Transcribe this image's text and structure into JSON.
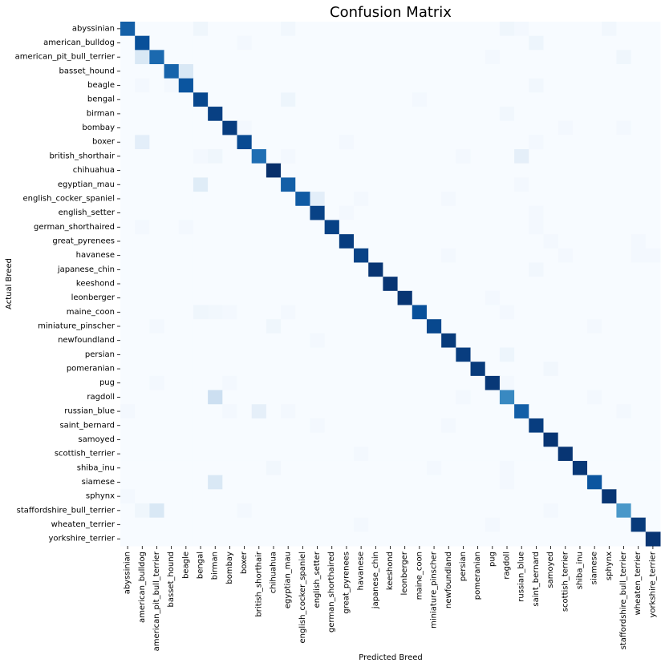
{
  "chart_data": {
    "type": "heatmap",
    "title": "Confusion Matrix",
    "xlabel": "Predicted Breed",
    "ylabel": "Actual Breed",
    "colormap": "Blues",
    "colorbar": false,
    "value_scale": "relative intensity 0-1",
    "categories": [
      "abyssinian",
      "american_bulldog",
      "american_pit_bull_terrier",
      "basset_hound",
      "beagle",
      "bengal",
      "birman",
      "bombay",
      "boxer",
      "british_shorthair",
      "chihuahua",
      "egyptian_mau",
      "english_cocker_spaniel",
      "english_setter",
      "german_shorthaired",
      "great_pyrenees",
      "havanese",
      "japanese_chin",
      "keeshond",
      "leonberger",
      "maine_coon",
      "miniature_pinscher",
      "newfoundland",
      "persian",
      "pomeranian",
      "pug",
      "ragdoll",
      "russian_blue",
      "saint_bernard",
      "samoyed",
      "scottish_terrier",
      "shiba_inu",
      "siamese",
      "sphynx",
      "staffordshire_bull_terrier",
      "wheaten_terrier",
      "yorkshire_terrier"
    ],
    "diagonal": [
      0.82,
      0.88,
      0.78,
      0.8,
      0.86,
      0.91,
      0.94,
      0.95,
      0.9,
      0.76,
      1.0,
      0.82,
      0.84,
      0.93,
      0.93,
      0.95,
      0.93,
      0.98,
      0.98,
      0.98,
      0.88,
      0.91,
      0.96,
      0.95,
      0.96,
      0.97,
      0.66,
      0.82,
      0.95,
      0.98,
      0.98,
      0.97,
      0.86,
      0.98,
      0.6,
      0.96,
      0.98
    ],
    "off_diagonal": [
      [
        0,
        5,
        0.04
      ],
      [
        0,
        11,
        0.03
      ],
      [
        0,
        26,
        0.04
      ],
      [
        0,
        27,
        0.02
      ],
      [
        0,
        33,
        0.03
      ],
      [
        1,
        8,
        0.02
      ],
      [
        1,
        28,
        0.05
      ],
      [
        2,
        1,
        0.15
      ],
      [
        2,
        25,
        0.02
      ],
      [
        2,
        34,
        0.04
      ],
      [
        3,
        4,
        0.15
      ],
      [
        4,
        1,
        0.02
      ],
      [
        4,
        3,
        0.02
      ],
      [
        4,
        28,
        0.03
      ],
      [
        5,
        11,
        0.05
      ],
      [
        5,
        20,
        0.02
      ],
      [
        6,
        26,
        0.03
      ],
      [
        7,
        8,
        0.02
      ],
      [
        7,
        30,
        0.02
      ],
      [
        7,
        34,
        0.02
      ],
      [
        8,
        1,
        0.1
      ],
      [
        8,
        15,
        0.02
      ],
      [
        8,
        28,
        0.02
      ],
      [
        9,
        5,
        0.02
      ],
      [
        9,
        6,
        0.04
      ],
      [
        9,
        11,
        0.02
      ],
      [
        9,
        23,
        0.02
      ],
      [
        9,
        27,
        0.09
      ],
      [
        11,
        5,
        0.12
      ],
      [
        11,
        27,
        0.02
      ],
      [
        12,
        13,
        0.1
      ],
      [
        12,
        16,
        0.02
      ],
      [
        12,
        22,
        0.02
      ],
      [
        13,
        15,
        0.02
      ],
      [
        13,
        28,
        0.02
      ],
      [
        14,
        1,
        0.02
      ],
      [
        14,
        4,
        0.02
      ],
      [
        14,
        28,
        0.02
      ],
      [
        15,
        29,
        0.02
      ],
      [
        15,
        35,
        0.02
      ],
      [
        16,
        22,
        0.02
      ],
      [
        16,
        30,
        0.02
      ],
      [
        16,
        35,
        0.02
      ],
      [
        16,
        36,
        0.02
      ],
      [
        17,
        28,
        0.03
      ],
      [
        18,
        18,
        0.98
      ],
      [
        19,
        25,
        0.02
      ],
      [
        20,
        5,
        0.04
      ],
      [
        20,
        6,
        0.03
      ],
      [
        20,
        7,
        0.02
      ],
      [
        20,
        11,
        0.02
      ],
      [
        20,
        26,
        0.02
      ],
      [
        21,
        2,
        0.02
      ],
      [
        21,
        10,
        0.04
      ],
      [
        21,
        32,
        0.02
      ],
      [
        22,
        13,
        0.02
      ],
      [
        23,
        26,
        0.05
      ],
      [
        24,
        29,
        0.03
      ],
      [
        25,
        2,
        0.02
      ],
      [
        25,
        7,
        0.02
      ],
      [
        25,
        26,
        0.02
      ],
      [
        26,
        6,
        0.22
      ],
      [
        26,
        23,
        0.02
      ],
      [
        26,
        32,
        0.02
      ],
      [
        27,
        0,
        0.02
      ],
      [
        27,
        7,
        0.02
      ],
      [
        27,
        9,
        0.09
      ],
      [
        27,
        11,
        0.02
      ],
      [
        27,
        34,
        0.02
      ],
      [
        28,
        13,
        0.02
      ],
      [
        28,
        22,
        0.02
      ],
      [
        30,
        16,
        0.02
      ],
      [
        31,
        10,
        0.03
      ],
      [
        31,
        21,
        0.02
      ],
      [
        31,
        26,
        0.02
      ],
      [
        32,
        6,
        0.15
      ],
      [
        32,
        26,
        0.02
      ],
      [
        33,
        0,
        0.02
      ],
      [
        34,
        1,
        0.04
      ],
      [
        34,
        2,
        0.15
      ],
      [
        34,
        8,
        0.02
      ],
      [
        34,
        29,
        0.02
      ],
      [
        35,
        16,
        0.02
      ],
      [
        35,
        25,
        0.02
      ]
    ]
  }
}
